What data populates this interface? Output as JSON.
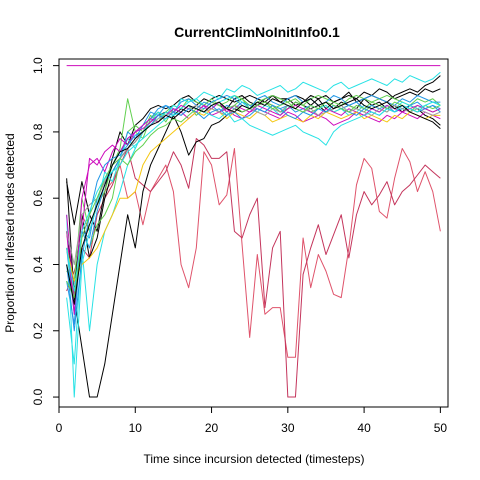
{
  "chart_data": {
    "type": "line",
    "title": "CurrentClimNoInitInfo0.1",
    "xlabel": "Time since incursion detected (timesteps)",
    "ylabel": "Proportion of infested nodes detected",
    "xlim": [
      0,
      51
    ],
    "ylim": [
      -0.03,
      1.02
    ],
    "x_ticks": [
      0,
      10,
      20,
      30,
      40,
      50
    ],
    "y_ticks": [
      0.0,
      0.2,
      0.4,
      0.6,
      0.8,
      1.0
    ],
    "x_tick_labels": [
      "0",
      "10",
      "20",
      "30",
      "40",
      "50"
    ],
    "y_tick_labels": [
      "0.0",
      "0.2",
      "0.4",
      "0.6",
      "0.8",
      "1.0"
    ],
    "grid": false,
    "legend": "none",
    "x": [
      1,
      2,
      3,
      4,
      5,
      6,
      7,
      8,
      9,
      10,
      11,
      12,
      13,
      14,
      15,
      16,
      17,
      18,
      19,
      20,
      21,
      22,
      23,
      24,
      25,
      26,
      27,
      28,
      29,
      30,
      31,
      32,
      33,
      34,
      35,
      36,
      37,
      38,
      39,
      40,
      41,
      42,
      43,
      44,
      45,
      46,
      47,
      48,
      49,
      50
    ],
    "series": [
      {
        "color": "#CD0BBC",
        "values": [
          1,
          1,
          1,
          1,
          1,
          1,
          1,
          1,
          1,
          1,
          1,
          1,
          1,
          1,
          1,
          1,
          1,
          1,
          1,
          1,
          1,
          1,
          1,
          1,
          1,
          1,
          1,
          1,
          1,
          1,
          1,
          1,
          1,
          1,
          1,
          1,
          1,
          1,
          1,
          1,
          1,
          1,
          1,
          1,
          1,
          1,
          1,
          1,
          1,
          1
        ]
      },
      {
        "color": "#DF536B",
        "values": [
          0.45,
          0.3,
          0.55,
          0.5,
          0.58,
          0.62,
          0.65,
          0.7,
          0.6,
          0.62,
          0.52,
          0.62,
          0.66,
          0.7,
          0.62,
          0.4,
          0.33,
          0.45,
          0.74,
          0.7,
          0.58,
          0.61,
          0.75,
          0.46,
          0.18,
          0.43,
          0.25,
          0.27,
          0.27,
          0.12,
          0.12,
          0.48,
          0.33,
          0.43,
          0.38,
          0.31,
          0.3,
          0.45,
          0.64,
          0.72,
          0.69,
          0.56,
          0.54,
          0.66,
          0.75,
          0.71,
          0.62,
          0.68,
          0.62,
          0.5
        ]
      },
      {
        "color": "#C4355C",
        "values": [
          0.32,
          0.38,
          0.45,
          0.42,
          0.55,
          0.6,
          0.64,
          0.7,
          0.75,
          0.66,
          0.64,
          0.62,
          0.65,
          0.68,
          0.74,
          0.7,
          0.63,
          0.78,
          0.76,
          0.72,
          0.72,
          0.74,
          0.5,
          0.48,
          0.55,
          0.6,
          0.27,
          0.45,
          0.5,
          0.0,
          0.0,
          0.37,
          0.45,
          0.52,
          0.43,
          0.49,
          0.55,
          0.42,
          0.55,
          0.62,
          0.58,
          0.61,
          0.65,
          0.58,
          0.62,
          0.64,
          0.67,
          0.7,
          0.68,
          0.66
        ]
      },
      {
        "color": "#000000",
        "values": [
          0.66,
          0.3,
          0.15,
          0.0,
          0.0,
          0.1,
          0.25,
          0.4,
          0.55,
          0.45,
          0.62,
          0.7,
          0.75,
          0.8,
          0.85,
          0.8,
          0.73,
          0.77,
          0.78,
          0.82,
          0.83,
          0.85,
          0.87,
          0.86,
          0.87,
          0.88,
          0.89,
          0.88,
          0.86,
          0.87,
          0.89,
          0.88,
          0.87,
          0.88,
          0.86,
          0.87,
          0.89,
          0.88,
          0.87,
          0.9,
          0.88,
          0.89,
          0.87,
          0.88,
          0.86,
          0.88,
          0.87,
          0.85,
          0.84,
          0.82
        ]
      },
      {
        "color": "#000000",
        "values": [
          0.65,
          0.52,
          0.65,
          0.55,
          0.5,
          0.62,
          0.72,
          0.8,
          0.76,
          0.82,
          0.84,
          0.87,
          0.88,
          0.87,
          0.88,
          0.9,
          0.91,
          0.89,
          0.88,
          0.9,
          0.91,
          0.9,
          0.89,
          0.9,
          0.91,
          0.9,
          0.89,
          0.91,
          0.9,
          0.9,
          0.91,
          0.9,
          0.88,
          0.9,
          0.91,
          0.89,
          0.9,
          0.91,
          0.9,
          0.92,
          0.91,
          0.9,
          0.89,
          0.91,
          0.92,
          0.93,
          0.92,
          0.94,
          0.95,
          0.97
        ]
      },
      {
        "color": "#000000",
        "values": [
          0.5,
          0.32,
          0.55,
          0.42,
          0.48,
          0.6,
          0.68,
          0.72,
          0.75,
          0.77,
          0.8,
          0.83,
          0.85,
          0.86,
          0.85,
          0.87,
          0.86,
          0.88,
          0.9,
          0.89,
          0.88,
          0.87,
          0.9,
          0.91,
          0.89,
          0.88,
          0.9,
          0.91,
          0.89,
          0.9,
          0.88,
          0.89,
          0.91,
          0.9,
          0.87,
          0.89,
          0.9,
          0.92,
          0.89,
          0.9,
          0.91,
          0.93,
          0.92,
          0.9,
          0.91,
          0.92,
          0.91,
          0.93,
          0.92,
          0.93
        ]
      },
      {
        "color": "#61D04F",
        "values": [
          0.4,
          0.3,
          0.5,
          0.45,
          0.52,
          0.55,
          0.6,
          0.72,
          0.8,
          0.82,
          0.8,
          0.85,
          0.83,
          0.86,
          0.88,
          0.87,
          0.9,
          0.89,
          0.88,
          0.9,
          0.88,
          0.89,
          0.91,
          0.9,
          0.88,
          0.89,
          0.9,
          0.91,
          0.9,
          0.89,
          0.9,
          0.88,
          0.9,
          0.91,
          0.9,
          0.89,
          0.88,
          0.9,
          0.91,
          0.9,
          0.89,
          0.9,
          0.91,
          0.9,
          0.89,
          0.88,
          0.9,
          0.89,
          0.9,
          0.88
        ]
      },
      {
        "color": "#61D04F",
        "values": [
          0.38,
          0.35,
          0.6,
          0.5,
          0.58,
          0.62,
          0.7,
          0.75,
          0.9,
          0.8,
          0.78,
          0.84,
          0.86,
          0.83,
          0.87,
          0.86,
          0.88,
          0.85,
          0.87,
          0.89,
          0.88,
          0.86,
          0.88,
          0.9,
          0.87,
          0.88,
          0.89,
          0.88,
          0.86,
          0.87,
          0.89,
          0.88,
          0.86,
          0.87,
          0.88,
          0.86,
          0.87,
          0.88,
          0.87,
          0.86,
          0.88,
          0.87,
          0.86,
          0.88,
          0.87,
          0.86,
          0.88,
          0.87,
          0.86,
          0.87
        ]
      },
      {
        "color": "#2297E6",
        "values": [
          0.45,
          0.25,
          0.5,
          0.45,
          0.56,
          0.64,
          0.7,
          0.74,
          0.78,
          0.8,
          0.82,
          0.84,
          0.87,
          0.88,
          0.86,
          0.89,
          0.9,
          0.88,
          0.87,
          0.89,
          0.9,
          0.91,
          0.9,
          0.88,
          0.87,
          0.9,
          0.91,
          0.89,
          0.88,
          0.9,
          0.91,
          0.89,
          0.9,
          0.88,
          0.89,
          0.91,
          0.9,
          0.88,
          0.89,
          0.9,
          0.91,
          0.9,
          0.89,
          0.88,
          0.9,
          0.89,
          0.91,
          0.9,
          0.89,
          0.89
        ]
      },
      {
        "color": "#2297E6",
        "values": [
          0.35,
          0.22,
          0.5,
          0.48,
          0.6,
          0.65,
          0.68,
          0.72,
          0.8,
          0.78,
          0.82,
          0.86,
          0.85,
          0.88,
          0.87,
          0.86,
          0.88,
          0.87,
          0.89,
          0.88,
          0.86,
          0.88,
          0.87,
          0.89,
          0.88,
          0.87,
          0.86,
          0.88,
          0.87,
          0.88,
          0.86,
          0.87,
          0.88,
          0.87,
          0.86,
          0.88,
          0.87,
          0.88,
          0.89,
          0.87,
          0.88,
          0.87,
          0.88,
          0.86,
          0.87,
          0.88,
          0.89,
          0.87,
          0.88,
          0.87
        ]
      },
      {
        "color": "#28E2E5",
        "values": [
          0.55,
          0.0,
          0.4,
          0.5,
          0.58,
          0.68,
          0.65,
          0.72,
          0.78,
          0.75,
          0.8,
          0.82,
          0.84,
          0.86,
          0.85,
          0.9,
          0.89,
          0.9,
          0.92,
          0.91,
          0.9,
          0.93,
          0.92,
          0.94,
          0.93,
          0.91,
          0.92,
          0.93,
          0.94,
          0.92,
          0.93,
          0.95,
          0.94,
          0.93,
          0.92,
          0.94,
          0.95,
          0.93,
          0.94,
          0.95,
          0.96,
          0.95,
          0.94,
          0.96,
          0.95,
          0.97,
          0.96,
          0.95,
          0.96,
          0.98
        ]
      },
      {
        "color": "#28E2E5",
        "values": [
          0.3,
          0.1,
          0.45,
          0.2,
          0.4,
          0.5,
          0.55,
          0.62,
          0.7,
          0.75,
          0.8,
          0.83,
          0.86,
          0.85,
          0.88,
          0.87,
          0.89,
          0.9,
          0.88,
          0.87,
          0.89,
          0.9,
          0.91,
          0.89,
          0.87,
          0.86,
          0.88,
          0.87,
          0.85,
          0.88,
          0.87,
          0.86,
          0.85,
          0.87,
          0.88,
          0.86,
          0.87,
          0.85,
          0.86,
          0.88,
          0.87,
          0.86,
          0.88,
          0.87,
          0.89,
          0.88,
          0.87,
          0.88,
          0.89,
          0.88
        ]
      },
      {
        "color": "#CD0BBC",
        "values": [
          0.5,
          0.25,
          0.6,
          0.7,
          0.72,
          0.68,
          0.74,
          0.78,
          0.76,
          0.8,
          0.82,
          0.84,
          0.83,
          0.85,
          0.87,
          0.86,
          0.84,
          0.86,
          0.88,
          0.85,
          0.86,
          0.87,
          0.85,
          0.84,
          0.86,
          0.87,
          0.86,
          0.85,
          0.84,
          0.86,
          0.85,
          0.83,
          0.84,
          0.85,
          0.84,
          0.82,
          0.83,
          0.84,
          0.86,
          0.85,
          0.84,
          0.83,
          0.85,
          0.84,
          0.86,
          0.85,
          0.84,
          0.86,
          0.85,
          0.84
        ]
      },
      {
        "color": "#CD0BBC",
        "values": [
          0.55,
          0.3,
          0.5,
          0.72,
          0.7,
          0.74,
          0.76,
          0.74,
          0.78,
          0.8,
          0.81,
          0.83,
          0.85,
          0.84,
          0.86,
          0.88,
          0.87,
          0.86,
          0.88,
          0.87,
          0.89,
          0.86,
          0.88,
          0.87,
          0.86,
          0.88,
          0.87,
          0.86,
          0.85,
          0.87,
          0.88,
          0.87,
          0.86,
          0.85,
          0.87,
          0.86,
          0.85,
          0.87,
          0.86,
          0.85,
          0.87,
          0.86,
          0.88,
          0.87,
          0.86,
          0.87,
          0.88,
          0.87,
          0.86,
          0.87
        ]
      },
      {
        "color": "#F5C710",
        "values": [
          0.45,
          0.35,
          0.4,
          0.42,
          0.45,
          0.5,
          0.55,
          0.6,
          0.6,
          0.62,
          0.7,
          0.74,
          0.76,
          0.78,
          0.8,
          0.82,
          0.84,
          0.86,
          0.85,
          0.87,
          0.86,
          0.84,
          0.86,
          0.85,
          0.84,
          0.86,
          0.85,
          0.83,
          0.84,
          0.85,
          0.84,
          0.83,
          0.85,
          0.84,
          0.86,
          0.85,
          0.84,
          0.85,
          0.86,
          0.84,
          0.85,
          0.84,
          0.83,
          0.85,
          0.84,
          0.86,
          0.85,
          0.84,
          0.85,
          0.85
        ]
      },
      {
        "color": "#9E9E9E",
        "values": [
          0.5,
          0.4,
          0.55,
          0.58,
          0.6,
          0.65,
          0.7,
          0.72,
          0.75,
          0.77,
          0.8,
          0.82,
          0.84,
          0.85,
          0.86,
          0.85,
          0.87,
          0.88,
          0.86,
          0.87,
          0.86,
          0.85,
          0.87,
          0.88,
          0.87,
          0.86,
          0.85,
          0.87,
          0.86,
          0.88,
          0.87,
          0.86,
          0.87,
          0.85,
          0.86,
          0.87,
          0.88,
          0.86,
          0.87,
          0.86,
          0.85,
          0.87,
          0.86,
          0.88,
          0.87,
          0.86,
          0.87,
          0.86,
          0.85,
          0.86
        ]
      },
      {
        "color": "#2297E6",
        "values": [
          0.4,
          0.2,
          0.42,
          0.55,
          0.65,
          0.7,
          0.72,
          0.73,
          0.76,
          0.79,
          0.8,
          0.82,
          0.85,
          0.84,
          0.86,
          0.85,
          0.87,
          0.86,
          0.84,
          0.86,
          0.87,
          0.85,
          0.86,
          0.84,
          0.85,
          0.87,
          0.86,
          0.88,
          0.87,
          0.85,
          0.84,
          0.86,
          0.85,
          0.87,
          0.86,
          0.88,
          0.87,
          0.86,
          0.85,
          0.87,
          0.86,
          0.85,
          0.87,
          0.86,
          0.88,
          0.87,
          0.86,
          0.87,
          0.88,
          0.86
        ]
      },
      {
        "color": "#61D04F",
        "values": [
          0.35,
          0.3,
          0.48,
          0.55,
          0.6,
          0.66,
          0.7,
          0.72,
          0.7,
          0.74,
          0.76,
          0.79,
          0.81,
          0.82,
          0.84,
          0.83,
          0.85,
          0.87,
          0.86,
          0.88,
          0.89,
          0.87,
          0.88,
          0.86,
          0.87,
          0.88,
          0.89,
          0.87,
          0.88,
          0.89,
          0.87,
          0.86,
          0.88,
          0.87,
          0.89,
          0.88,
          0.87,
          0.86,
          0.88,
          0.87,
          0.89,
          0.88,
          0.87,
          0.89,
          0.88,
          0.87,
          0.86,
          0.88,
          0.87,
          0.88
        ]
      },
      {
        "color": "#28E2E5",
        "values": [
          0.45,
          0.32,
          0.5,
          0.56,
          0.62,
          0.66,
          0.68,
          0.7,
          0.74,
          0.76,
          0.78,
          0.8,
          0.82,
          0.84,
          0.85,
          0.86,
          0.88,
          0.87,
          0.86,
          0.85,
          0.84,
          0.86,
          0.83,
          0.84,
          0.82,
          0.81,
          0.8,
          0.79,
          0.8,
          0.81,
          0.82,
          0.8,
          0.79,
          0.78,
          0.76,
          0.8,
          0.82,
          0.83,
          0.84,
          0.85,
          0.86,
          0.85,
          0.87,
          0.86,
          0.88,
          0.87,
          0.86,
          0.88,
          0.89,
          0.88
        ]
      },
      {
        "color": "#000000",
        "values": [
          0.4,
          0.28,
          0.45,
          0.52,
          0.58,
          0.64,
          0.7,
          0.74,
          0.75,
          0.78,
          0.8,
          0.82,
          0.83,
          0.85,
          0.84,
          0.86,
          0.88,
          0.87,
          0.86,
          0.88,
          0.89,
          0.87,
          0.86,
          0.88,
          0.87,
          0.89,
          0.88,
          0.9,
          0.89,
          0.88,
          0.87,
          0.89,
          0.9,
          0.88,
          0.89,
          0.87,
          0.88,
          0.89,
          0.9,
          0.88,
          0.87,
          0.88,
          0.89,
          0.87,
          0.88,
          0.86,
          0.85,
          0.84,
          0.83,
          0.81
        ]
      }
    ]
  }
}
